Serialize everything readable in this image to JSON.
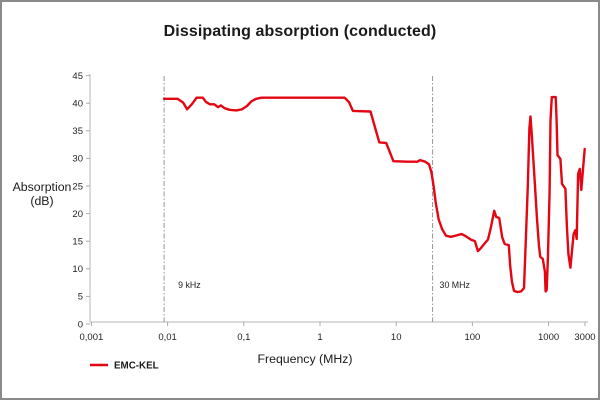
{
  "chart_data": {
    "type": "line",
    "title": "Dissipating absorption (conducted)",
    "xlabel": "Frequency (MHz)",
    "ylabel": "Absorption (dB)",
    "ylabel_line1": "Absorption",
    "ylabel_line2": "(dB)",
    "x_scale": "log",
    "xlim": [
      0.001,
      3500
    ],
    "ylim": [
      0,
      45
    ],
    "grid": false,
    "x_ticks": [
      {
        "value": 0.001,
        "label": "0,001"
      },
      {
        "value": 0.01,
        "label": "0,01"
      },
      {
        "value": 0.1,
        "label": "0,1"
      },
      {
        "value": 1,
        "label": "1"
      },
      {
        "value": 10,
        "label": "10"
      },
      {
        "value": 100,
        "label": "100"
      },
      {
        "value": 1000,
        "label": "1000"
      },
      {
        "value": 3000,
        "label": "3000"
      }
    ],
    "y_ticks": [
      {
        "value": 0,
        "label": "0"
      },
      {
        "value": 5,
        "label": "5"
      },
      {
        "value": 10,
        "label": "10"
      },
      {
        "value": 15,
        "label": "15"
      },
      {
        "value": 20,
        "label": "20"
      },
      {
        "value": 25,
        "label": "25"
      },
      {
        "value": 30,
        "label": "30"
      },
      {
        "value": 35,
        "label": "35"
      },
      {
        "value": 40,
        "label": "40"
      },
      {
        "value": 45,
        "label": "45"
      }
    ],
    "annotations": [
      {
        "freq_mhz": 0.009,
        "label": "9 kHz"
      },
      {
        "freq_mhz": 30,
        "label": "30 MHz"
      }
    ],
    "legend": {
      "position": "bottom-left",
      "label": "EMC-KEL"
    },
    "series": [
      {
        "name": "EMC-KEL",
        "color": "#e30613",
        "points": [
          [
            0.009,
            40.8
          ],
          [
            0.011,
            40.8
          ],
          [
            0.0135,
            40.8
          ],
          [
            0.016,
            40.1
          ],
          [
            0.018,
            38.9
          ],
          [
            0.021,
            39.9
          ],
          [
            0.024,
            41.0
          ],
          [
            0.029,
            41.0
          ],
          [
            0.032,
            40.2
          ],
          [
            0.036,
            39.8
          ],
          [
            0.041,
            39.8
          ],
          [
            0.046,
            39.3
          ],
          [
            0.05,
            39.6
          ],
          [
            0.056,
            39.1
          ],
          [
            0.065,
            38.8
          ],
          [
            0.08,
            38.7
          ],
          [
            0.095,
            38.9
          ],
          [
            0.11,
            39.5
          ],
          [
            0.125,
            40.3
          ],
          [
            0.145,
            40.8
          ],
          [
            0.17,
            41.0
          ],
          [
            0.4,
            41.0
          ],
          [
            1.0,
            41.0
          ],
          [
            2.1,
            41.0
          ],
          [
            2.4,
            40.2
          ],
          [
            2.7,
            38.6
          ],
          [
            4.6,
            38.5
          ],
          [
            6.0,
            32.9
          ],
          [
            7.4,
            32.8
          ],
          [
            9.2,
            29.5
          ],
          [
            14,
            29.4
          ],
          [
            19,
            29.4
          ],
          [
            20.5,
            29.7
          ],
          [
            24,
            29.4
          ],
          [
            27,
            28.9
          ],
          [
            29,
            27.5
          ],
          [
            31,
            25.0
          ],
          [
            33,
            22.0
          ],
          [
            36,
            19.0
          ],
          [
            40,
            17.2
          ],
          [
            45,
            16.0
          ],
          [
            52,
            15.8
          ],
          [
            60,
            16.0
          ],
          [
            72,
            16.3
          ],
          [
            82,
            15.9
          ],
          [
            95,
            15.3
          ],
          [
            108,
            15.0
          ],
          [
            118,
            13.2
          ],
          [
            128,
            13.7
          ],
          [
            145,
            14.6
          ],
          [
            160,
            15.3
          ],
          [
            175,
            17.5
          ],
          [
            193,
            20.5
          ],
          [
            205,
            19.4
          ],
          [
            225,
            19.2
          ],
          [
            246,
            15.7
          ],
          [
            265,
            14.5
          ],
          [
            300,
            14.3
          ],
          [
            312,
            10.7
          ],
          [
            330,
            7.7
          ],
          [
            352,
            6.0
          ],
          [
            390,
            5.8
          ],
          [
            435,
            5.9
          ],
          [
            476,
            6.5
          ],
          [
            505,
            16.1
          ],
          [
            533,
            25.0
          ],
          [
            560,
            35.5
          ],
          [
            578,
            37.6
          ],
          [
            600,
            34.5
          ],
          [
            663,
            25.0
          ],
          [
            704,
            19.0
          ],
          [
            747,
            14.3
          ],
          [
            775,
            12.2
          ],
          [
            840,
            11.8
          ],
          [
            893,
            9.5
          ],
          [
            912,
            5.9
          ],
          [
            945,
            6.2
          ],
          [
            980,
            12.0
          ],
          [
            1030,
            24.0
          ],
          [
            1060,
            36.9
          ],
          [
            1100,
            41.1
          ],
          [
            1240,
            41.1
          ],
          [
            1272,
            36.9
          ],
          [
            1310,
            30.6
          ],
          [
            1430,
            29.9
          ],
          [
            1500,
            25.4
          ],
          [
            1660,
            24.5
          ],
          [
            1740,
            17.6
          ],
          [
            1820,
            12.7
          ],
          [
            1930,
            10.2
          ],
          [
            2130,
            16.3
          ],
          [
            2245,
            17.0
          ],
          [
            2340,
            15.4
          ],
          [
            2440,
            27.2
          ],
          [
            2570,
            28.1
          ],
          [
            2690,
            24.3
          ],
          [
            2980,
            31.7
          ]
        ]
      }
    ]
  },
  "colors": {
    "curve": "#e30613",
    "axis_line": "#c3c3c3",
    "tick_mark": "#ababab",
    "annotation_line": "#979797",
    "text": "#1a1a1a",
    "border": "#8a8a8a"
  }
}
